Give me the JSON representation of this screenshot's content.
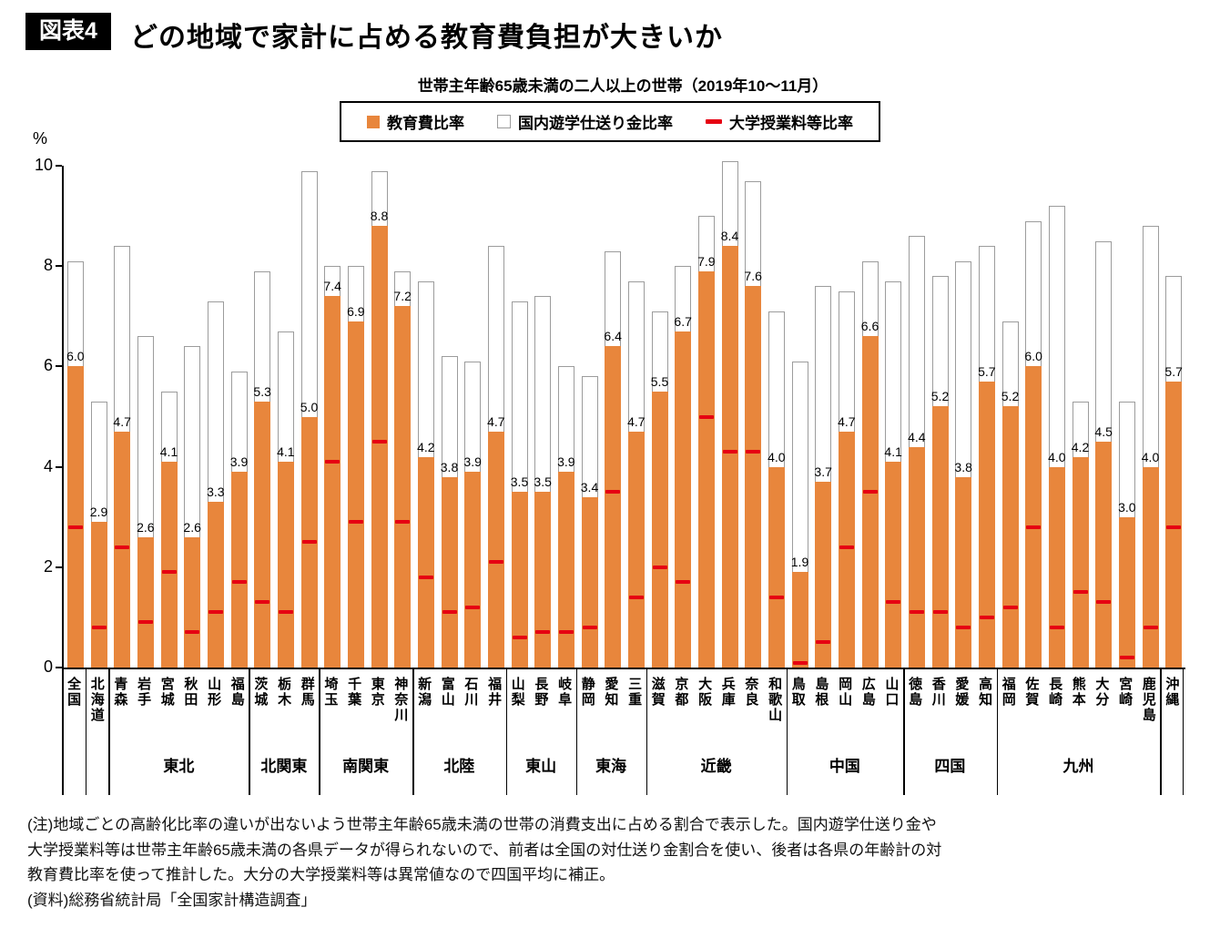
{
  "header": {
    "tag": "図表4",
    "title": "どの地域で家計に占める教育費負担が大きいか"
  },
  "chart_data": {
    "type": "bar",
    "title": "どの地域で家計に占める教育費負担が大きいか",
    "subtitle": "世帯主年齢65歳未満の二人以上の世帯（2019年10～11月）",
    "ylabel": "%",
    "ylim": [
      0,
      10
    ],
    "yticks": [
      0,
      2,
      4,
      6,
      8,
      10
    ],
    "grid": false,
    "legend_position": "top",
    "legend": [
      {
        "label": "教育費比率",
        "swatch": "orange-square",
        "color": "#e8863c"
      },
      {
        "label": "国内遊学仕送り金比率",
        "swatch": "white-square",
        "color": "#ffffff"
      },
      {
        "label": "大学授業料等比率",
        "swatch": "red-dash",
        "color": "#e60012"
      }
    ],
    "series_note": "education = 教育費比率 (orange, labeled), total = bar top incl. 国内遊学仕送り金比率 (white, estimated), tuition = 大学授業料等比率 (red dash, estimated)",
    "bars": [
      {
        "prefecture": "全国",
        "education": 6.0,
        "total": 8.1,
        "tuition": 2.8
      },
      {
        "prefecture": "北海道",
        "education": 2.9,
        "total": 5.3,
        "tuition": 0.8
      },
      {
        "prefecture": "青森",
        "education": 4.7,
        "total": 8.4,
        "tuition": 2.4
      },
      {
        "prefecture": "岩手",
        "education": 2.6,
        "total": 6.6,
        "tuition": 0.9
      },
      {
        "prefecture": "宮城",
        "education": 4.1,
        "total": 5.5,
        "tuition": 1.9
      },
      {
        "prefecture": "秋田",
        "education": 2.6,
        "total": 6.4,
        "tuition": 0.7
      },
      {
        "prefecture": "山形",
        "education": 3.3,
        "total": 7.3,
        "tuition": 1.1
      },
      {
        "prefecture": "福島",
        "education": 3.9,
        "total": 5.9,
        "tuition": 1.7
      },
      {
        "prefecture": "茨城",
        "education": 5.3,
        "total": 7.9,
        "tuition": 1.3
      },
      {
        "prefecture": "栃木",
        "education": 4.1,
        "total": 6.7,
        "tuition": 1.1
      },
      {
        "prefecture": "群馬",
        "education": 5.0,
        "total": 9.9,
        "tuition": 2.5
      },
      {
        "prefecture": "埼玉",
        "education": 7.4,
        "total": 8.0,
        "tuition": 4.1
      },
      {
        "prefecture": "千葉",
        "education": 6.9,
        "total": 8.0,
        "tuition": 2.9
      },
      {
        "prefecture": "東京",
        "education": 8.8,
        "total": 9.9,
        "tuition": 4.5
      },
      {
        "prefecture": "神奈川",
        "education": 7.2,
        "total": 7.9,
        "tuition": 2.9
      },
      {
        "prefecture": "新潟",
        "education": 4.2,
        "total": 7.7,
        "tuition": 1.8
      },
      {
        "prefecture": "富山",
        "education": 3.8,
        "total": 6.2,
        "tuition": 1.1
      },
      {
        "prefecture": "石川",
        "education": 3.9,
        "total": 6.1,
        "tuition": 1.2
      },
      {
        "prefecture": "福井",
        "education": 4.7,
        "total": 8.4,
        "tuition": 2.1
      },
      {
        "prefecture": "山梨",
        "education": 3.5,
        "total": 7.3,
        "tuition": 0.6
      },
      {
        "prefecture": "長野",
        "education": 3.5,
        "total": 7.4,
        "tuition": 0.7
      },
      {
        "prefecture": "岐阜",
        "education": 3.9,
        "total": 6.0,
        "tuition": 0.7
      },
      {
        "prefecture": "静岡",
        "education": 3.4,
        "total": 5.8,
        "tuition": 0.8
      },
      {
        "prefecture": "愛知",
        "education": 6.4,
        "total": 8.3,
        "tuition": 3.5
      },
      {
        "prefecture": "三重",
        "education": 4.7,
        "total": 7.7,
        "tuition": 1.4
      },
      {
        "prefecture": "滋賀",
        "education": 5.5,
        "total": 7.1,
        "tuition": 2.0
      },
      {
        "prefecture": "京都",
        "education": 6.7,
        "total": 8.0,
        "tuition": 1.7
      },
      {
        "prefecture": "大阪",
        "education": 7.9,
        "total": 9.0,
        "tuition": 5.0
      },
      {
        "prefecture": "兵庫",
        "education": 8.4,
        "total": 10.1,
        "tuition": 4.3
      },
      {
        "prefecture": "奈良",
        "education": 7.6,
        "total": 9.7,
        "tuition": 4.3
      },
      {
        "prefecture": "和歌山",
        "education": 4.0,
        "total": 7.1,
        "tuition": 1.4
      },
      {
        "prefecture": "鳥取",
        "education": 1.9,
        "total": 6.1,
        "tuition": 0.1
      },
      {
        "prefecture": "島根",
        "education": 3.7,
        "total": 7.6,
        "tuition": 0.5
      },
      {
        "prefecture": "岡山",
        "education": 4.7,
        "total": 7.5,
        "tuition": 2.4
      },
      {
        "prefecture": "広島",
        "education": 6.6,
        "total": 8.1,
        "tuition": 3.5
      },
      {
        "prefecture": "山口",
        "education": 4.1,
        "total": 7.7,
        "tuition": 1.3
      },
      {
        "prefecture": "徳島",
        "education": 4.4,
        "total": 8.6,
        "tuition": 1.1
      },
      {
        "prefecture": "香川",
        "education": 5.2,
        "total": 7.8,
        "tuition": 1.1
      },
      {
        "prefecture": "愛媛",
        "education": 3.8,
        "total": 8.1,
        "tuition": 0.8
      },
      {
        "prefecture": "高知",
        "education": 5.7,
        "total": 8.4,
        "tuition": 1.0
      },
      {
        "prefecture": "福岡",
        "education": 5.2,
        "total": 6.9,
        "tuition": 1.2
      },
      {
        "prefecture": "佐賀",
        "education": 6.0,
        "total": 8.9,
        "tuition": 2.8
      },
      {
        "prefecture": "長崎",
        "education": 4.0,
        "total": 9.2,
        "tuition": 0.8
      },
      {
        "prefecture": "熊本",
        "education": 4.2,
        "total": 5.3,
        "tuition": 1.5
      },
      {
        "prefecture": "大分",
        "education": 4.5,
        "total": 8.5,
        "tuition": 1.3
      },
      {
        "prefecture": "宮崎",
        "education": 3.0,
        "total": 5.3,
        "tuition": 0.2
      },
      {
        "prefecture": "鹿児島",
        "education": 4.0,
        "total": 8.8,
        "tuition": 0.8
      },
      {
        "prefecture": "沖縄",
        "education": 5.7,
        "total": 7.8,
        "tuition": 2.8
      }
    ],
    "groups": [
      {
        "label": "",
        "start": 0,
        "end": 0
      },
      {
        "label": "",
        "start": 1,
        "end": 1
      },
      {
        "label": "東北",
        "start": 2,
        "end": 7
      },
      {
        "label": "北関東",
        "start": 8,
        "end": 10
      },
      {
        "label": "南関東",
        "start": 11,
        "end": 14
      },
      {
        "label": "北陸",
        "start": 15,
        "end": 18
      },
      {
        "label": "東山",
        "start": 19,
        "end": 21
      },
      {
        "label": "東海",
        "start": 22,
        "end": 24
      },
      {
        "label": "近畿",
        "start": 25,
        "end": 30
      },
      {
        "label": "中国",
        "start": 31,
        "end": 35
      },
      {
        "label": "四国",
        "start": 36,
        "end": 39
      },
      {
        "label": "九州",
        "start": 40,
        "end": 46
      },
      {
        "label": "",
        "start": 47,
        "end": 47
      }
    ]
  },
  "notes": {
    "lines": [
      "(注)地域ごとの高齢化比率の違いが出ないよう世帯主年齢65歳未満の世帯の消費支出に占める割合で表示した。国内遊学仕送り金や",
      "大学授業料等は世帯主年齢65歳未満の各県データが得られないので、前者は全国の対仕送り金割合を使い、後者は各県の年齢計の対",
      "教育費比率を使って推計した。大分の大学授業料等は異常値なので四国平均に補正。",
      "(資料)総務省統計局「全国家計構造調査」"
    ]
  }
}
